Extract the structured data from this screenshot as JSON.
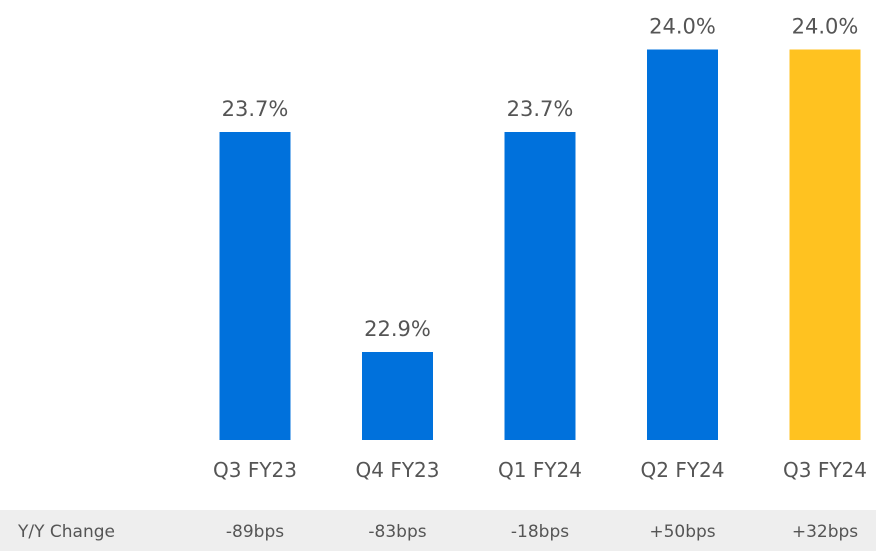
{
  "chart_data": {
    "type": "bar",
    "categories": [
      "Q3 FY23",
      "Q4 FY23",
      "Q1 FY24",
      "Q2 FY24",
      "Q3 FY24"
    ],
    "values": [
      23.7,
      22.9,
      23.7,
      24.0,
      24.0
    ],
    "value_labels": [
      "23.7%",
      "22.9%",
      "23.7%",
      "24.0%",
      "24.0%"
    ],
    "bar_colors": [
      "#0071DC",
      "#0071DC",
      "#0071DC",
      "#0071DC",
      "#FFC220"
    ],
    "title": "",
    "xlabel": "",
    "ylabel": "",
    "grid": false,
    "legend": "none",
    "change_row": {
      "label": "Y/Y Change",
      "values": [
        "-89bps",
        "-83bps",
        "-18bps",
        "+50bps",
        "+32bps"
      ]
    }
  }
}
